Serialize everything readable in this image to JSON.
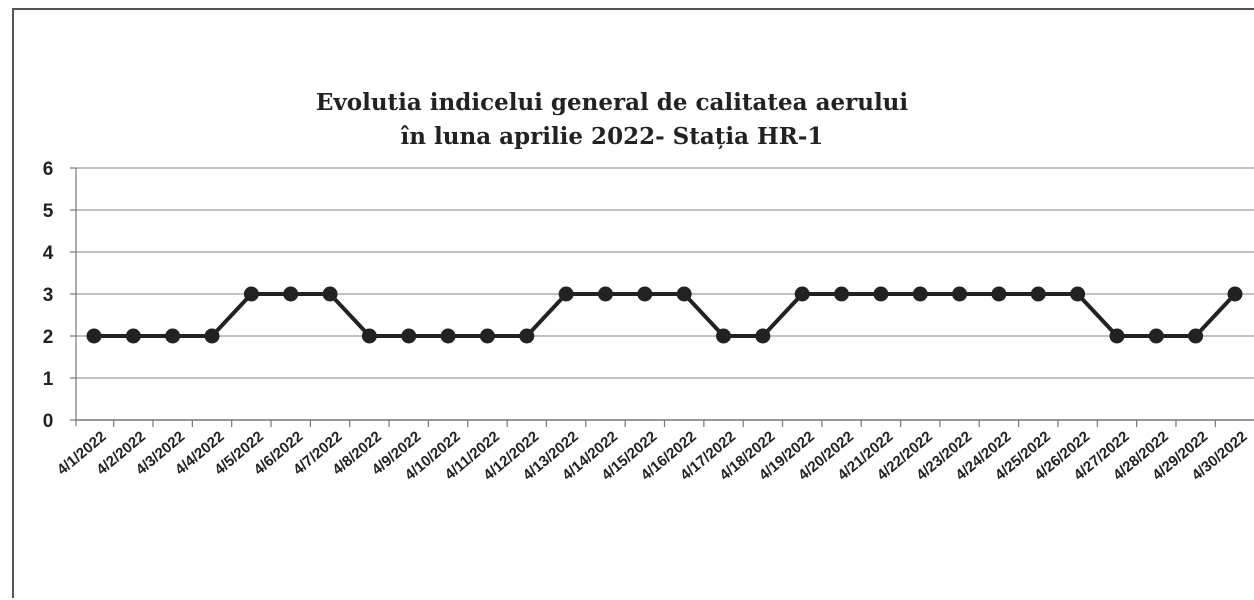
{
  "chart_data": {
    "type": "line",
    "title": "Evolutia indicelui  general de calitatea aerului",
    "subtitle": "în luna aprilie  2022- Stația HR-1",
    "xlabel": "",
    "ylabel": "",
    "ylim": [
      0,
      6
    ],
    "yticks": [
      0,
      1,
      2,
      3,
      4,
      5,
      6
    ],
    "grid": true,
    "x": [
      "4/1/2022",
      "4/2/2022",
      "4/3/2022",
      "4/4/2022",
      "4/5/2022",
      "4/6/2022",
      "4/7/2022",
      "4/8/2022",
      "4/9/2022",
      "4/10/2022",
      "4/11/2022",
      "4/12/2022",
      "4/13/2022",
      "4/14/2022",
      "4/15/2022",
      "4/16/2022",
      "4/17/2022",
      "4/18/2022",
      "4/19/2022",
      "4/20/2022",
      "4/21/2022",
      "4/22/2022",
      "4/23/2022",
      "4/24/2022",
      "4/25/2022",
      "4/26/2022",
      "4/27/2022",
      "4/28/2022",
      "4/29/2022",
      "4/30/2022"
    ],
    "series": [
      {
        "values": [
          2,
          2,
          2,
          2,
          3,
          3,
          3,
          2,
          2,
          2,
          2,
          2,
          3,
          3,
          3,
          3,
          2,
          2,
          3,
          3,
          3,
          3,
          3,
          3,
          3,
          3,
          2,
          2,
          2,
          3
        ],
        "color": "#222222"
      }
    ]
  }
}
